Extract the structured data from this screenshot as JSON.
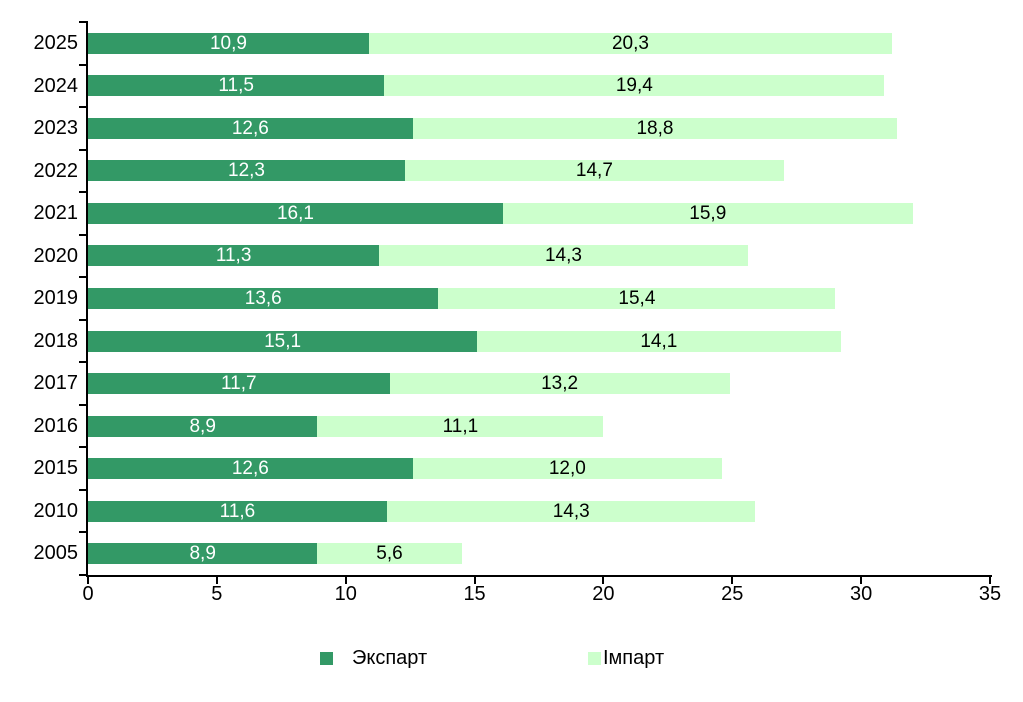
{
  "chart_data": {
    "type": "bar",
    "orientation": "horizontal",
    "stacked": true,
    "title": "",
    "xlabel": "",
    "ylabel": "",
    "categories": [
      "2025",
      "2024",
      "2023",
      "2022",
      "2021",
      "2020",
      "2019",
      "2018",
      "2017",
      "2016",
      "2015",
      "2010",
      "2005"
    ],
    "series": [
      {
        "name": "Экспарт",
        "color": "#339966",
        "label_color": "#ffffff",
        "values": [
          10.9,
          11.5,
          12.6,
          12.3,
          16.1,
          11.3,
          13.6,
          15.1,
          11.7,
          8.9,
          12.6,
          11.6,
          8.9
        ],
        "labels": [
          "10,9",
          "11,5",
          "12,6",
          "12,3",
          "16,1",
          "11,3",
          "13,6",
          "15,1",
          "11,7",
          "8,9",
          "12,6",
          "11,6",
          "8,9"
        ]
      },
      {
        "name": "Імпарт",
        "color": "#ccffcc",
        "label_color": "#000000",
        "values": [
          20.3,
          19.4,
          18.8,
          14.7,
          15.9,
          14.3,
          15.4,
          14.1,
          13.2,
          11.1,
          12.0,
          14.3,
          5.6
        ],
        "labels": [
          "20,3",
          "19,4",
          "18,8",
          "14,7",
          "15,9",
          "14,3",
          "15,4",
          "14,1",
          "13,2",
          "11,1",
          "12,0",
          "14,3",
          "5,6"
        ]
      }
    ],
    "xlim": [
      0,
      35
    ],
    "x_ticks": [
      0,
      5,
      10,
      15,
      20,
      25,
      30,
      35
    ],
    "x_tick_labels": [
      "0",
      "5",
      "10",
      "15",
      "20",
      "25",
      "30",
      "35"
    ],
    "grid": false,
    "legend_position": "bottom",
    "axis_color": "#000000",
    "text_color": "#000000",
    "background_color": "#ffffff"
  }
}
